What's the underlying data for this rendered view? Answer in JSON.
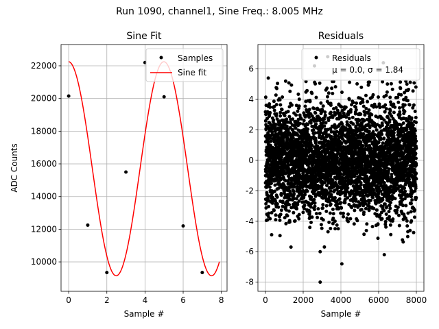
{
  "figure_title": "Run 1090, channel1, Sine Freq.: 8.005 MHz",
  "colors": {
    "sample_marker": "#000000",
    "fit_line": "#ff0000",
    "grid": "#b0b0b0",
    "axes": "#000000"
  },
  "chart_data": [
    {
      "type": "scatter",
      "title": "Sine Fit",
      "xlabel": "Sample #",
      "ylabel": "ADC Counts",
      "xlim": [
        -0.4,
        8.3
      ],
      "ylim": [
        8200,
        23300
      ],
      "xticks": [
        0,
        2,
        4,
        6,
        8
      ],
      "yticks": [
        10000,
        12000,
        14000,
        16000,
        18000,
        20000,
        22000
      ],
      "grid": true,
      "legend_position": "top-right",
      "legend": [
        "Samples",
        "Sine fit"
      ],
      "series": [
        {
          "name": "Samples",
          "kind": "points",
          "color": "#000000",
          "x": [
            0,
            1,
            2,
            3,
            4,
            5,
            6,
            7
          ],
          "y": [
            20150,
            12250,
            9350,
            15500,
            22200,
            20100,
            12200,
            9350
          ]
        },
        {
          "name": "Sine fit",
          "kind": "line",
          "color": "#ff0000",
          "function": "sine",
          "offset": 15700,
          "amplitude": 6550,
          "period_samples": 4.997,
          "phase_rad": 1.5813,
          "x_range": [
            0,
            7.9
          ]
        }
      ]
    },
    {
      "type": "scatter",
      "title": "Residuals",
      "xlabel": "Sample #",
      "ylabel": "",
      "xlim": [
        -400,
        8400
      ],
      "ylim": [
        -8.6,
        7.6
      ],
      "xticks": [
        0,
        2000,
        4000,
        6000,
        8000
      ],
      "yticks": [
        -8,
        -6,
        -4,
        -2,
        0,
        2,
        4,
        6
      ],
      "grid": true,
      "legend_position": "top-right",
      "legend": [
        "Residuals",
        "μ = 0.0, σ = 1.84"
      ],
      "series": [
        {
          "name": "Residuals",
          "kind": "points",
          "color": "#000000",
          "n_points": 8000,
          "x_range": [
            0,
            7999
          ],
          "mean": 0.0,
          "sigma": 1.84,
          "notable_points": [
            {
              "x": 2900,
              "y": -8.0
            },
            {
              "x": 4050,
              "y": -6.8
            },
            {
              "x": 3300,
              "y": 6.8
            },
            {
              "x": 6250,
              "y": 6.4
            },
            {
              "x": 2600,
              "y": 6.2
            },
            {
              "x": 150,
              "y": 5.4
            },
            {
              "x": 2900,
              "y": -6.0
            },
            {
              "x": 6300,
              "y": -6.2
            },
            {
              "x": 7500,
              "y": 5.0
            }
          ]
        }
      ]
    }
  ]
}
